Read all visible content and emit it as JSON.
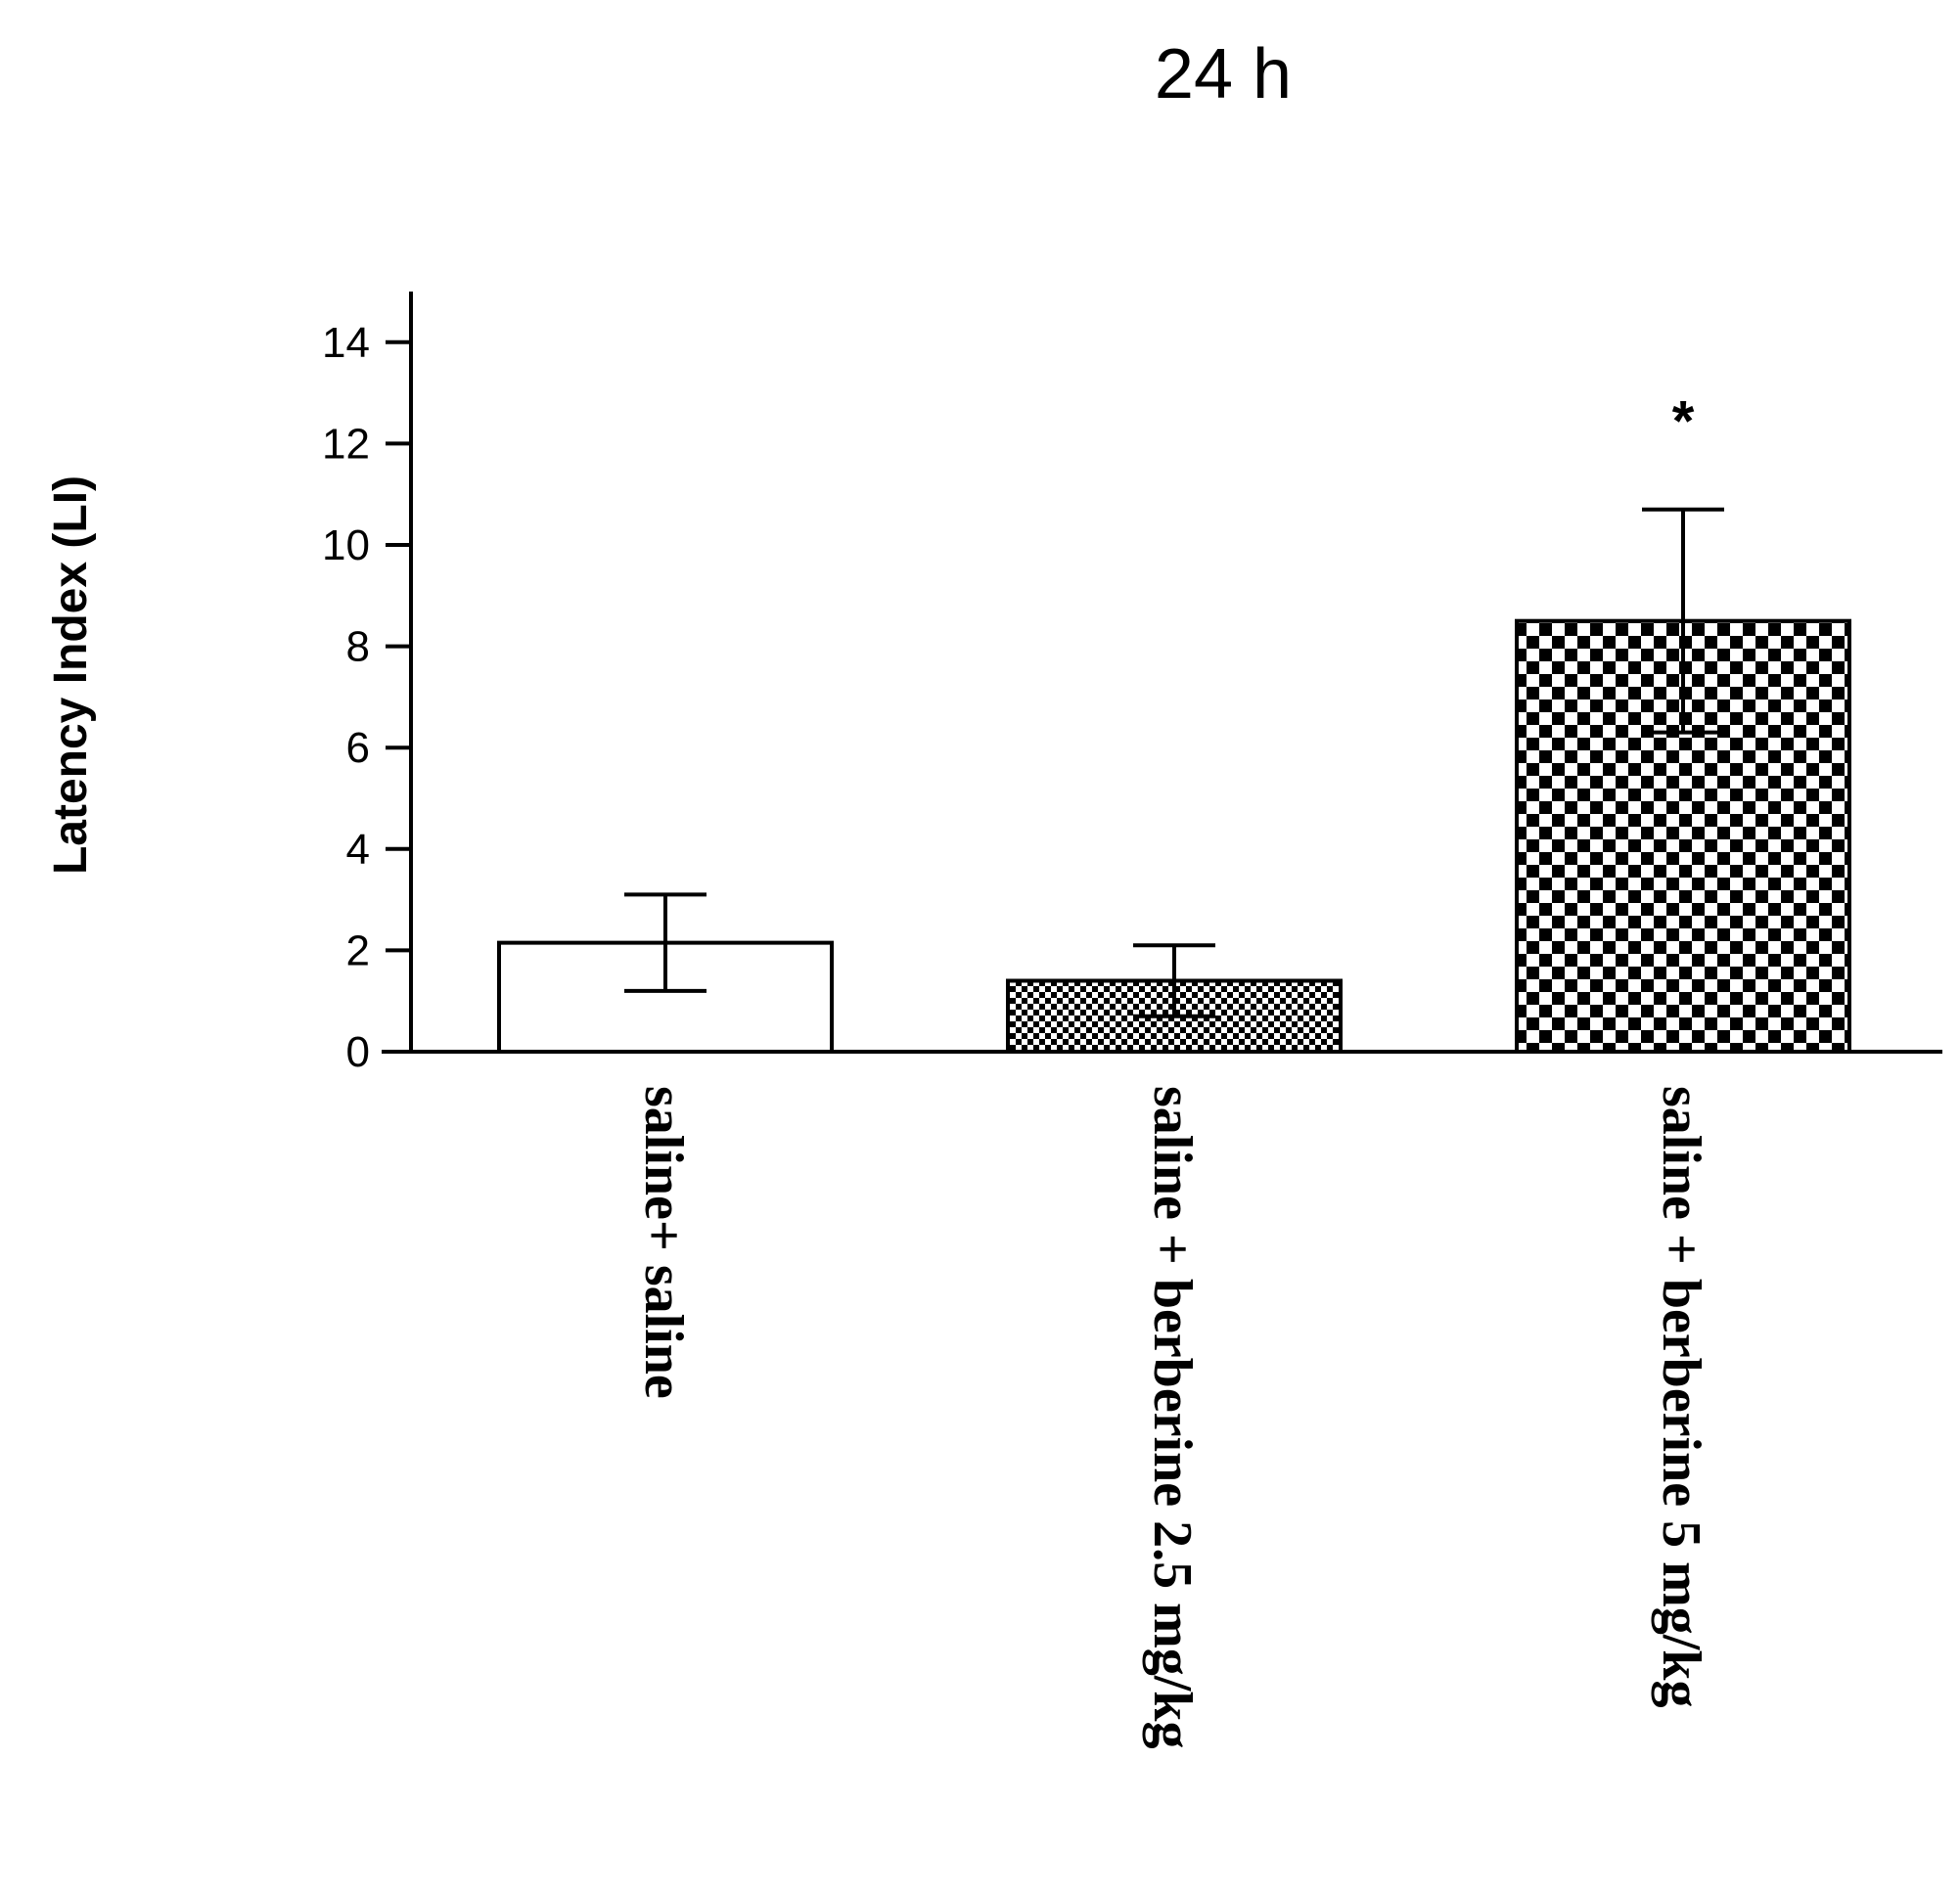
{
  "chart_data": {
    "type": "bar",
    "title": "24 h",
    "xlabel": "",
    "ylabel": "Latency Index (LI)",
    "ylim": [
      0,
      15
    ],
    "yticks": [
      0,
      2,
      4,
      6,
      8,
      10,
      12,
      14
    ],
    "categories": [
      "saline+ saline",
      "saline + berberine 2.5 mg/kg",
      "saline + berberine 5 mg/kg"
    ],
    "values": [
      2.15,
      1.4,
      8.5
    ],
    "errors": [
      0.95,
      0.7,
      2.2
    ],
    "fills": [
      "white",
      "fine-check",
      "coarse-check"
    ],
    "annotations": [
      "",
      "",
      "*"
    ],
    "grid": false,
    "legend": "none",
    "colors": {
      "bar_stroke": "#000000",
      "pattern": "#000000",
      "background": "#ffffff"
    }
  }
}
